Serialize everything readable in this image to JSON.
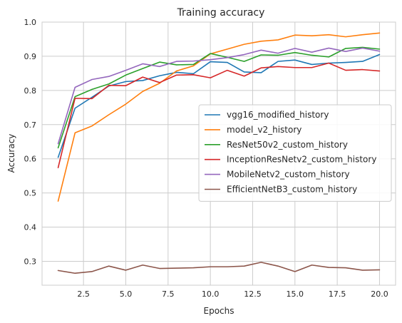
{
  "chart_data": {
    "type": "line",
    "title": "Training accuracy",
    "xlabel": "Epochs",
    "ylabel": "Accuracy",
    "xlim": [
      0.05,
      20.95
    ],
    "ylim": [
      0.23,
      1.0
    ],
    "xticks": [
      2.5,
      5.0,
      7.5,
      10.0,
      12.5,
      15.0,
      17.5,
      20.0
    ],
    "xtick_labels": [
      "2.5",
      "5.0",
      "7.5",
      "10.0",
      "12.5",
      "15.0",
      "17.5",
      "20.0"
    ],
    "yticks": [
      0.3,
      0.4,
      0.5,
      0.6,
      0.7,
      0.8,
      0.9,
      1.0
    ],
    "ytick_labels": [
      "0.3",
      "0.4",
      "0.5",
      "0.6",
      "0.7",
      "0.8",
      "0.9",
      "1.0"
    ],
    "grid": true,
    "legend_position": "center-right",
    "x": [
      1,
      2,
      3,
      4,
      5,
      6,
      7,
      8,
      9,
      10,
      11,
      12,
      13,
      14,
      15,
      16,
      17,
      18,
      19,
      20
    ],
    "series": [
      {
        "name": "vgg16_modified_history",
        "color": "#1f77b4",
        "values": [
          0.604,
          0.748,
          0.78,
          0.813,
          0.826,
          0.829,
          0.843,
          0.853,
          0.849,
          0.884,
          0.882,
          0.854,
          0.852,
          0.885,
          0.889,
          0.876,
          0.88,
          0.882,
          0.885,
          0.905
        ]
      },
      {
        "name": "model_v2_history",
        "color": "#ff7f0e",
        "values": [
          0.476,
          0.676,
          0.696,
          0.729,
          0.76,
          0.797,
          0.821,
          0.857,
          0.872,
          0.907,
          0.921,
          0.935,
          0.944,
          0.948,
          0.962,
          0.96,
          0.963,
          0.957,
          0.963,
          0.968
        ]
      },
      {
        "name": "ResNet50v2_custom_history",
        "color": "#2ca02c",
        "values": [
          0.632,
          0.782,
          0.803,
          0.819,
          0.845,
          0.864,
          0.883,
          0.875,
          0.876,
          0.908,
          0.897,
          0.885,
          0.904,
          0.903,
          0.911,
          0.903,
          0.898,
          0.923,
          0.926,
          0.921
        ]
      },
      {
        "name": "InceptionResNetv2_custom_history",
        "color": "#d62728",
        "values": [
          0.574,
          0.777,
          0.776,
          0.815,
          0.814,
          0.839,
          0.823,
          0.845,
          0.846,
          0.837,
          0.859,
          0.842,
          0.866,
          0.87,
          0.867,
          0.867,
          0.88,
          0.859,
          0.861,
          0.857
        ]
      },
      {
        "name": "MobileNetv2_custom_history",
        "color": "#9467bd",
        "values": [
          0.644,
          0.809,
          0.832,
          0.841,
          0.859,
          0.878,
          0.87,
          0.885,
          0.886,
          0.89,
          0.896,
          0.905,
          0.918,
          0.909,
          0.923,
          0.912,
          0.924,
          0.914,
          0.924,
          0.915
        ]
      },
      {
        "name": "EfficientNetB3_custom_history",
        "color": "#8c564b",
        "values": [
          0.273,
          0.265,
          0.27,
          0.286,
          0.274,
          0.289,
          0.279,
          0.28,
          0.281,
          0.284,
          0.284,
          0.286,
          0.297,
          0.286,
          0.27,
          0.289,
          0.282,
          0.281,
          0.274,
          0.275
        ]
      }
    ]
  }
}
